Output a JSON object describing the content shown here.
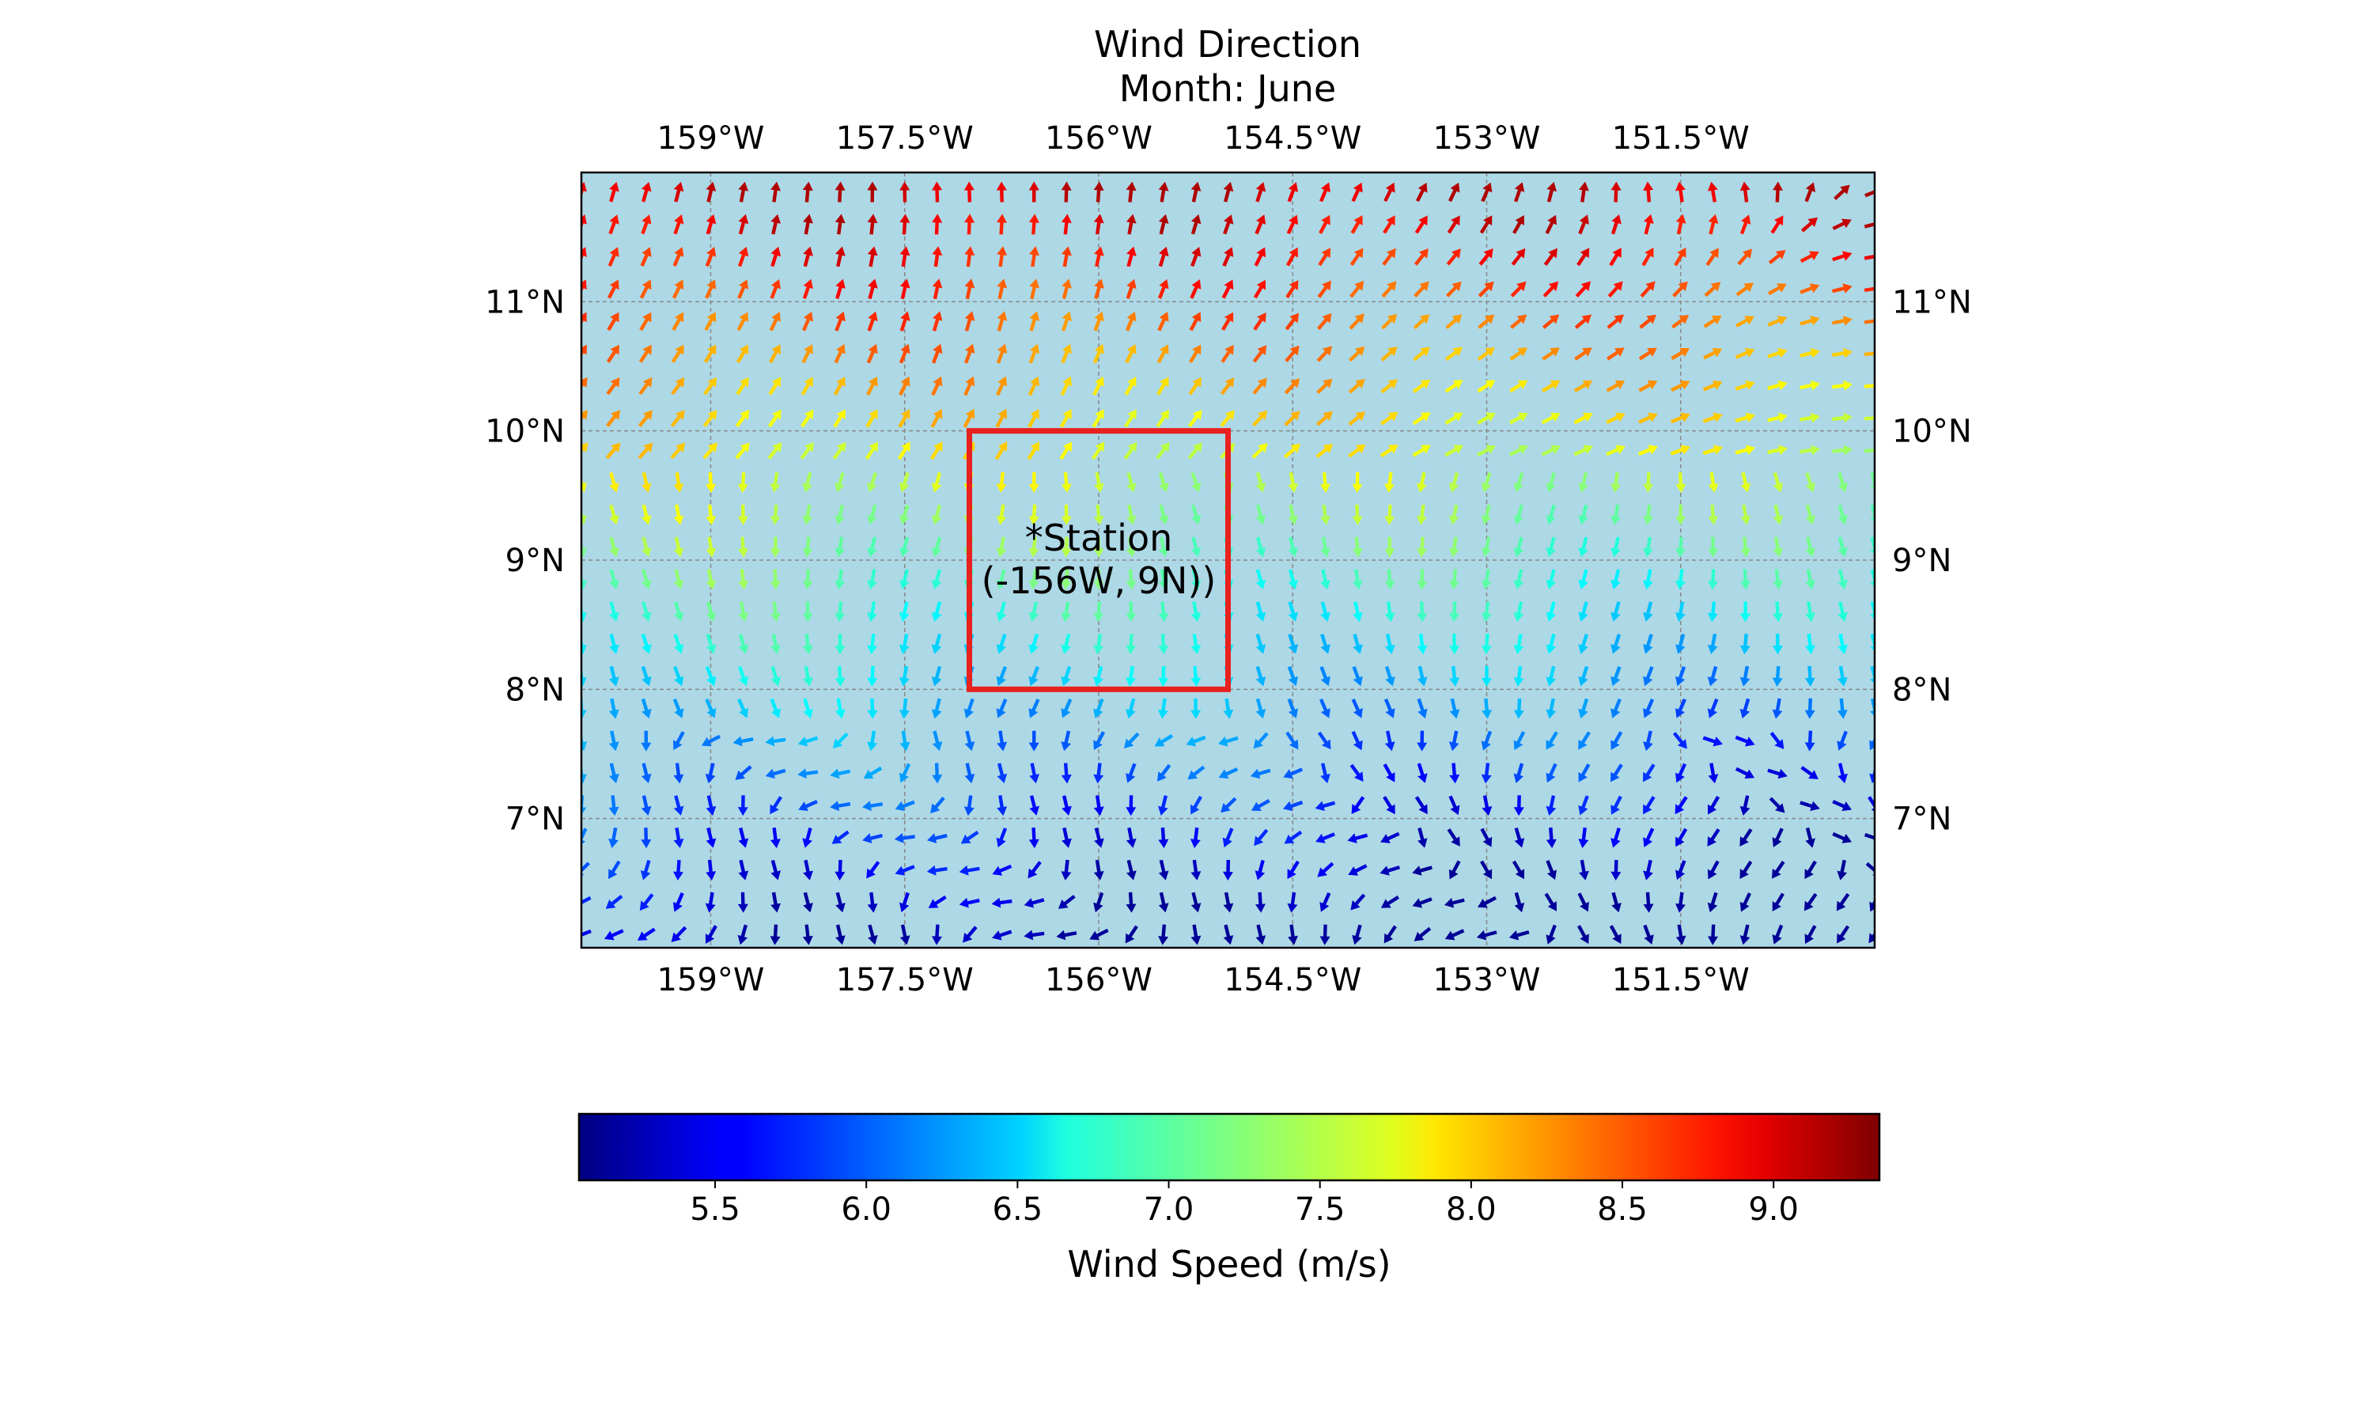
{
  "title": "Wind Direction",
  "subtitle": "Month: June",
  "map": {
    "lon_range": [
      -160.0,
      -150.0
    ],
    "lat_range": [
      6.0,
      12.0
    ],
    "ocean_color": "#add8e6",
    "gridline_color": "#888888",
    "lon_ticks": [
      {
        "value": -159.0,
        "label": "159°W"
      },
      {
        "value": -157.5,
        "label": "157.5°W"
      },
      {
        "value": -156.0,
        "label": "156°W"
      },
      {
        "value": -154.5,
        "label": "154.5°W"
      },
      {
        "value": -153.0,
        "label": "153°W"
      },
      {
        "value": -151.5,
        "label": "151.5°W"
      }
    ],
    "lat_ticks": [
      {
        "value": 11.0,
        "label": "11°N"
      },
      {
        "value": 10.0,
        "label": "10°N"
      },
      {
        "value": 9.0,
        "label": "9°N"
      },
      {
        "value": 8.0,
        "label": "8°N"
      },
      {
        "value": 7.0,
        "label": "7°N"
      }
    ]
  },
  "station": {
    "label_line1": "*Station",
    "label_line2": "(-156W, 9N))",
    "box_lon": [
      -157.0,
      -155.0
    ],
    "box_lat": [
      8.0,
      10.0
    ],
    "box_color": "#e8201e"
  },
  "chart_data": {
    "type": "quiver",
    "description_of_field": "wind vectors on a 0.25 degree grid colored by wind speed (m/s); speed increases northward from about 5.5 m/s near 6N to about 9 m/s near 12N",
    "grid_step_deg": 0.25,
    "speed_range": [
      5.05,
      9.35
    ],
    "colormap": "jet"
  },
  "colorbar": {
    "label": "Wind Speed (m/s)",
    "vmin": 5.05,
    "vmax": 9.35,
    "ticks": [
      "5.5",
      "6.0",
      "6.5",
      "7.0",
      "7.5",
      "8.0",
      "8.5",
      "9.0"
    ]
  }
}
